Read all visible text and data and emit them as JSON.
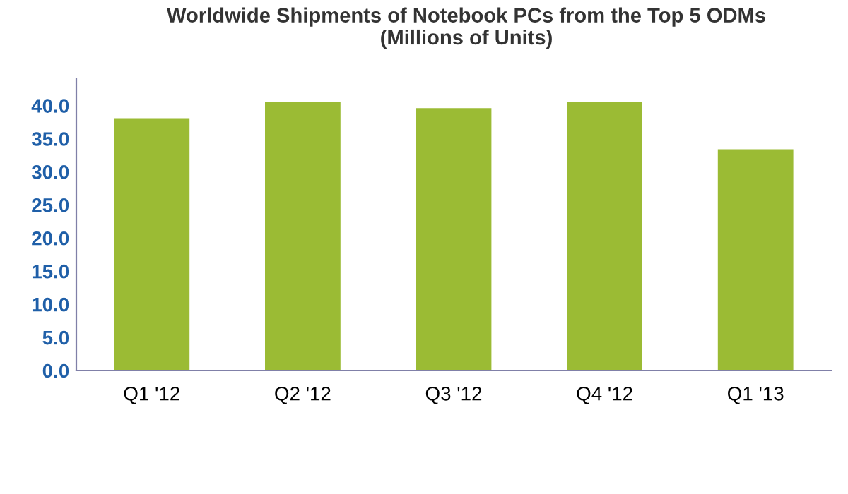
{
  "chart_data": {
    "type": "bar",
    "title": "Worldwide Shipments of Notebook PCs from the Top 5 ODMs\n(Millions of Units)",
    "categories": [
      "Q1 '12",
      "Q2 '12",
      "Q3 '12",
      "Q4 '12",
      "Q1 '13"
    ],
    "values": [
      38.1,
      40.5,
      39.6,
      40.5,
      33.4
    ],
    "color": "#9bbb34",
    "ylim": [
      0,
      44
    ],
    "yticks": [
      {
        "value": 0,
        "label": "0.0"
      },
      {
        "value": 5,
        "label": "5.0"
      },
      {
        "value": 10,
        "label": "10.0"
      },
      {
        "value": 15,
        "label": "15.0"
      },
      {
        "value": 20,
        "label": "20.0"
      },
      {
        "value": 25,
        "label": "25.0"
      },
      {
        "value": 30,
        "label": "30.0"
      },
      {
        "value": 35,
        "label": "35.0"
      },
      {
        "value": 40,
        "label": "40.0"
      }
    ],
    "grid": false
  }
}
